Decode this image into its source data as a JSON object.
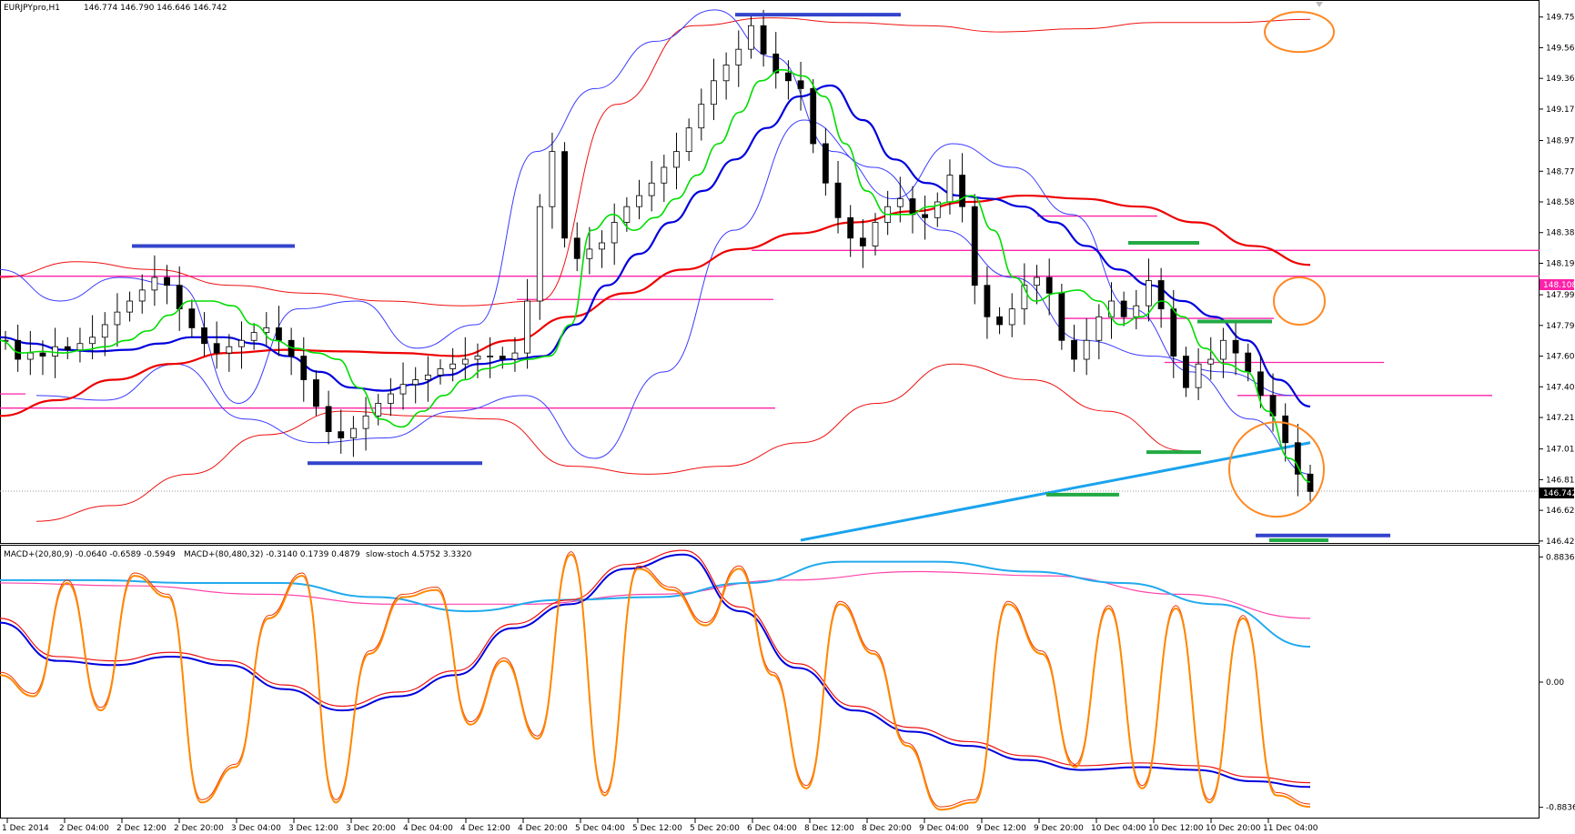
{
  "main_header": {
    "symbol": "EURJPYpro,H1",
    "ohlc": "146.774 146.790 146.646 146.742"
  },
  "indicator_header": {
    "macd1": "MACD+(20,80,9) -0.0640 -0.6589 -0.5949",
    "macd2": "MACD+(80,480,32) -0.3140 0.1739 0.4879",
    "stoch": "slow-stoch 4.5752 3.3320"
  },
  "price_badges": {
    "h_line": "148.108",
    "last": "146.742"
  },
  "colors": {
    "bull_candle": "#ffffff",
    "bear_candle": "#000000",
    "ema_fast": "#00dd00",
    "ema_slow": "#0000dd",
    "ema_long": "#ee0000",
    "bollinger_inner": "#3b3bff",
    "bollinger_outer": "#ee1111",
    "trendline": "#1aa3ee",
    "h_lines": "#ff22aa",
    "annot_blue": "#3344cc",
    "annot_green": "#22aa44",
    "circles": "#ff8822",
    "stoch": "#ff8800",
    "macd_main": "#0000dd",
    "macd_signal": "#ee1111",
    "macd2_main": "#22aaee",
    "macd2_signal": "#ff44aa"
  },
  "chart_data": [
    {
      "type": "candlestick",
      "title": "EURJPYpro,H1",
      "ylim": [
        146.43,
        149.84
      ],
      "yticks": [
        "149.755",
        "149.560",
        "149.365",
        "149.170",
        "148.970",
        "148.775",
        "148.580",
        "148.385",
        "148.190",
        "147.990",
        "147.795",
        "147.600",
        "147.405",
        "147.210",
        "147.010",
        "146.815",
        "146.620",
        "146.425"
      ],
      "xticks": [
        "1 Dec 2014",
        "2 Dec 04:00",
        "2 Dec 12:00",
        "2 Dec 20:00",
        "3 Dec 04:00",
        "3 Dec 12:00",
        "3 Dec 20:00",
        "4 Dec 04:00",
        "4 Dec 12:00",
        "4 Dec 20:00",
        "5 Dec 04:00",
        "5 Dec 12:00",
        "5 Dec 20:00",
        "6 Dec 04:00",
        "8 Dec 12:00",
        "8 Dec 20:00",
        "9 Dec 04:00",
        "9 Dec 12:00",
        "9 Dec 20:00",
        "10 Dec 04:00",
        "10 Dec 12:00",
        "10 Dec 20:00",
        "11 Dec 04:00"
      ],
      "close_path": [
        147.7,
        147.58,
        147.62,
        147.6,
        147.66,
        147.64,
        147.68,
        147.72,
        147.8,
        147.88,
        147.95,
        148.02,
        148.1,
        148.05,
        147.9,
        147.78,
        147.68,
        147.62,
        147.66,
        147.7,
        147.75,
        147.78,
        147.7,
        147.6,
        147.45,
        147.28,
        147.12,
        147.08,
        147.14,
        147.22,
        147.3,
        147.36,
        147.42,
        147.45,
        147.48,
        147.52,
        147.55,
        147.58,
        147.6,
        147.6,
        147.58,
        147.62,
        147.95,
        148.55,
        148.9,
        148.35,
        148.22,
        148.28,
        148.32,
        148.45,
        148.55,
        148.62,
        148.7,
        148.8,
        148.9,
        149.05,
        149.2,
        149.35,
        149.45,
        149.55,
        149.7,
        149.52,
        149.4,
        149.35,
        149.3,
        148.95,
        148.7,
        148.48,
        148.35,
        148.3,
        148.45,
        148.55,
        148.6,
        148.5,
        148.48,
        148.58,
        148.75,
        148.55,
        148.05,
        147.85,
        147.8,
        147.9,
        148.05,
        148.1,
        148.0,
        147.7,
        147.58,
        147.7,
        147.85,
        147.95,
        147.85,
        147.92,
        148.08,
        147.9,
        147.6,
        147.4,
        147.55,
        147.58,
        147.7,
        147.62,
        147.5,
        147.35,
        147.22,
        147.05,
        146.85,
        146.74
      ],
      "series": [
        {
          "name": "EMA fast",
          "values": [
            147.7,
            147.62,
            147.63,
            147.62,
            147.64,
            147.66,
            147.7,
            147.76,
            147.86,
            147.95,
            147.95,
            147.92,
            147.8,
            147.7,
            147.65,
            147.62,
            147.58,
            147.4,
            147.2,
            147.15,
            147.25,
            147.35,
            147.45,
            147.52,
            147.55,
            147.58,
            147.6,
            147.8,
            148.4,
            148.5,
            148.4,
            148.48,
            148.6,
            148.75,
            148.95,
            149.15,
            149.35,
            149.42,
            149.38,
            149.25,
            148.95,
            148.65,
            148.5,
            148.5,
            148.55,
            148.58,
            148.62,
            148.4,
            148.1,
            147.95,
            148.0,
            148.02,
            147.95,
            147.8,
            147.85,
            147.95,
            147.85,
            147.65,
            147.55,
            147.5,
            147.25,
            146.95,
            146.8
          ]
        },
        {
          "name": "EMA slow",
          "values": [
            147.72,
            147.68,
            147.64,
            147.63,
            147.64,
            147.68,
            147.72,
            147.72,
            147.68,
            147.6,
            147.5,
            147.4,
            147.38,
            147.42,
            147.48,
            147.55,
            147.58,
            147.6,
            147.8,
            148.05,
            148.25,
            148.45,
            148.65,
            148.85,
            149.05,
            149.25,
            149.32,
            149.1,
            148.85,
            148.7,
            148.62,
            148.6,
            148.55,
            148.45,
            148.3,
            148.15,
            148.05,
            147.95,
            147.85,
            147.7,
            147.45,
            147.28
          ]
        },
        {
          "name": "EMA long",
          "values": [
            147.22,
            147.32,
            147.45,
            147.55,
            147.62,
            147.64,
            147.63,
            147.62,
            147.6,
            147.7,
            147.85,
            148.0,
            148.15,
            148.28,
            148.38,
            148.45,
            148.52,
            148.58,
            148.62,
            148.6,
            148.55,
            148.45,
            148.3,
            148.18
          ]
        },
        {
          "name": "Bollinger",
          "values": [
            148.15,
            147.95,
            148.1,
            148.05,
            147.3,
            147.9,
            147.95,
            147.65,
            147.8,
            148.9,
            149.3,
            149.6,
            149.8,
            149.5,
            148.9,
            148.6,
            148.95,
            148.8,
            148.5,
            147.9,
            147.5,
            147.2,
            146.85
          ]
        },
        {
          "name": "Envelope",
          "values": [
            148.1,
            148.2,
            148.15,
            148.05,
            148.0,
            147.95,
            147.92,
            147.95,
            149.2,
            149.7,
            149.75,
            149.72,
            149.7,
            149.66,
            149.68,
            149.72,
            149.72,
            149.74
          ]
        },
        {
          "name": "Trend",
          "values": [
            146.43,
            146.85,
            147.05
          ]
        }
      ]
    },
    {
      "type": "line",
      "title": "MACD+(20,80,9) / MACD+(80,480,32) / slow-stoch",
      "ylim": [
        -0.95,
        0.95
      ],
      "yticks": [
        "0.8836",
        "0.00",
        "-0.8836"
      ],
      "series": [
        {
          "name": "slow-stoch",
          "values": [
            0.05,
            -0.1,
            0.7,
            -0.2,
            0.75,
            0.6,
            -0.85,
            -0.6,
            0.45,
            0.75,
            -0.85,
            0.2,
            0.6,
            0.65,
            -0.3,
            0.15,
            -0.4,
            0.9,
            -0.8,
            0.8,
            0.65,
            0.4,
            0.8,
            0.05,
            -0.75,
            0.55,
            0.2,
            -0.45,
            -0.9,
            -0.85,
            0.55,
            0.2,
            -0.6,
            0.52,
            -0.75,
            0.52,
            -0.85,
            0.45,
            -0.8,
            -0.88
          ]
        },
        {
          "name": "MACD-1",
          "values": [
            0.42,
            0.15,
            0.12,
            0.18,
            0.12,
            -0.05,
            -0.2,
            -0.1,
            0.05,
            0.38,
            0.55,
            0.8,
            0.9,
            0.5,
            0.1,
            -0.2,
            -0.35,
            -0.45,
            -0.55,
            -0.62,
            -0.6,
            -0.62,
            -0.7,
            -0.74
          ]
        },
        {
          "name": "MACD-2",
          "values": [
            0.72,
            0.72,
            0.7,
            0.7,
            0.6,
            0.5,
            0.58,
            0.6,
            0.7,
            0.85,
            0.85,
            0.78,
            0.7,
            0.55,
            0.25
          ]
        },
        {
          "name": "MACD-2 signal",
          "values": [
            0.7,
            0.68,
            0.62,
            0.55,
            0.55,
            0.62,
            0.72,
            0.78,
            0.75,
            0.62,
            0.45
          ]
        }
      ]
    }
  ]
}
